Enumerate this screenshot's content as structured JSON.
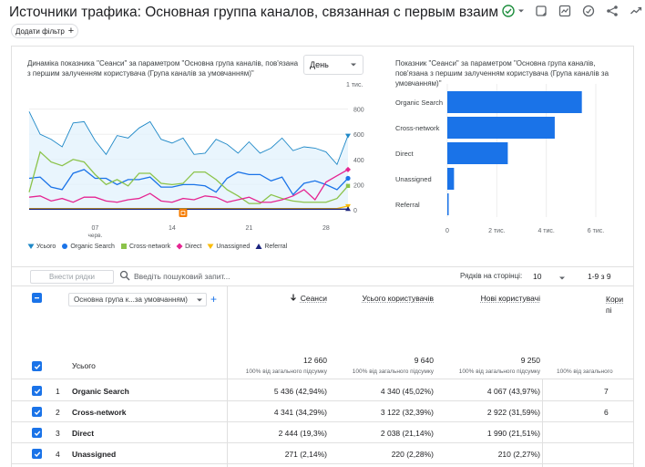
{
  "header": {
    "title": "Источники трафика: Основная группа каналов, связанная с первым взаимодействием поль...",
    "filter_chip": "Додати фільтр"
  },
  "line_chart": {
    "title": "Динаміка показника \"Сеанси\" за параметром \"Основна група каналів, пов'язана з першим залученням користувача (Група каналів за умовчанням)\"",
    "granularity": "День",
    "y_unit": "1 тис.",
    "y_ticks": [
      "800",
      "600",
      "400",
      "200",
      "0"
    ],
    "x_ticks": [
      "07",
      "14",
      "21",
      "28"
    ],
    "x_month": "черв.",
    "legend": [
      "Усього",
      "Organic Search",
      "Cross-network",
      "Direct",
      "Unassigned",
      "Referral"
    ]
  },
  "bar_chart": {
    "title": "Показник \"Сеанси\" за параметром \"Основна група каналів, пов'язана з першим залученням користувача (Група каналів за умовчанням)\"",
    "x_ticks": [
      "0",
      "2 тис.",
      "4 тис.",
      "6 тис."
    ]
  },
  "chart_data": [
    {
      "type": "line",
      "title": "Динаміка показника \"Сеанси\" за параметром \"Основна група каналів, пов'язана з першим залученням користувача (Група каналів за умовчанням)\"",
      "x": [
        1,
        2,
        3,
        4,
        5,
        6,
        7,
        8,
        9,
        10,
        11,
        12,
        13,
        14,
        15,
        16,
        17,
        18,
        19,
        20,
        21,
        22,
        23,
        24,
        25,
        26,
        27,
        28,
        29,
        30
      ],
      "x_ticks": [
        "07",
        "14",
        "21",
        "28"
      ],
      "x_month": "черв.",
      "ylim": [
        0,
        1000
      ],
      "y_unit": "1 тис.",
      "y_ticks": [
        800,
        600,
        400,
        200,
        0
      ],
      "legend_position": "bottom",
      "series": [
        {
          "name": "Усього",
          "color": "#1e88c7",
          "values": [
            780,
            600,
            560,
            500,
            690,
            700,
            550,
            440,
            590,
            570,
            650,
            700,
            560,
            530,
            570,
            440,
            450,
            560,
            520,
            450,
            540,
            450,
            490,
            570,
            470,
            500,
            490,
            460,
            360,
            590
          ]
        },
        {
          "name": "Organic Search",
          "color": "#1a73e8",
          "values": [
            250,
            260,
            180,
            160,
            290,
            320,
            250,
            250,
            200,
            240,
            240,
            260,
            180,
            180,
            200,
            200,
            190,
            140,
            250,
            300,
            280,
            280,
            230,
            260,
            120,
            210,
            230,
            200,
            160,
            250
          ]
        },
        {
          "name": "Cross-network",
          "color": "#8bc34a",
          "values": [
            140,
            460,
            380,
            350,
            400,
            380,
            280,
            200,
            240,
            190,
            290,
            290,
            210,
            200,
            210,
            300,
            300,
            240,
            160,
            110,
            50,
            50,
            120,
            90,
            70,
            60,
            60,
            60,
            90,
            190
          ]
        },
        {
          "name": "Direct",
          "color": "#e52592",
          "values": [
            100,
            110,
            70,
            90,
            60,
            100,
            100,
            70,
            60,
            80,
            90,
            130,
            70,
            60,
            90,
            80,
            110,
            100,
            60,
            80,
            100,
            60,
            60,
            80,
            110,
            160,
            80,
            220,
            270,
            320
          ]
        },
        {
          "name": "Unassigned",
          "color": "#fbbc04",
          "values": [
            10,
            10,
            10,
            10,
            10,
            10,
            10,
            10,
            10,
            10,
            10,
            10,
            10,
            10,
            10,
            10,
            10,
            10,
            10,
            10,
            10,
            10,
            10,
            10,
            10,
            10,
            10,
            10,
            10,
            30
          ]
        },
        {
          "name": "Referral",
          "color": "#1a237e",
          "values": [
            5,
            5,
            5,
            5,
            5,
            5,
            5,
            5,
            5,
            5,
            5,
            5,
            5,
            5,
            5,
            5,
            5,
            5,
            5,
            5,
            5,
            5,
            5,
            5,
            5,
            5,
            5,
            5,
            5,
            5
          ]
        }
      ]
    },
    {
      "type": "bar",
      "title": "Показник \"Сеанси\" за параметром \"Основна група каналів, пов'язана з першим залученням користувача (Група каналів за умовчанням)\"",
      "orientation": "horizontal",
      "categories": [
        "Organic Search",
        "Cross-network",
        "Direct",
        "Unassigned",
        "Referral"
      ],
      "values": [
        5436,
        4341,
        2444,
        271,
        40
      ],
      "xlim": [
        0,
        6000
      ],
      "x_ticks": [
        "0",
        "2 тис.",
        "4 тис.",
        "6 тис."
      ],
      "color": "#1a73e8"
    }
  ],
  "toolbar": {
    "search_rows": "Внести рядки",
    "search_placeholder": "Введіть пошуковий запит...",
    "rows_per_page_label": "Рядків на сторінці:",
    "rows_per_page": "10",
    "pager": "1-9 з 9"
  },
  "table": {
    "dimension": "Основна група к...за умовчанням)",
    "total_label": "Усього",
    "columns": [
      {
        "label": "Сеанси",
        "sorted": true,
        "total": "12 660",
        "sub": "100% від загального підсумку"
      },
      {
        "label": "Усього користувачів",
        "total": "9 640",
        "sub": "100% від загального підсумку"
      },
      {
        "label": "Нові користувачі",
        "total": "9 250",
        "sub": "100% від загального підсумку"
      },
      {
        "label": "Кори",
        "label2": "пі",
        "total": "",
        "sub": "100% від загального"
      }
    ],
    "rows": [
      {
        "num": "1",
        "name": "Organic Search",
        "c1": "5 436 (42,94%)",
        "c2": "4 340 (45,02%)",
        "c3": "4 067 (43,97%)",
        "c4": "7"
      },
      {
        "num": "2",
        "name": "Cross-network",
        "c1": "4 341 (34,29%)",
        "c2": "3 122 (32,39%)",
        "c3": "2 922 (31,59%)",
        "c4": "6"
      },
      {
        "num": "3",
        "name": "Direct",
        "c1": "2 444 (19,3%)",
        "c2": "2 038 (21,14%)",
        "c3": "1 990 (21,51%)",
        "c4": ""
      },
      {
        "num": "4",
        "name": "Unassigned",
        "c1": "271 (2,14%)",
        "c2": "220 (2,28%)",
        "c3": "210 (2,27%)",
        "c4": ""
      }
    ]
  },
  "colors": {
    "accent": "#1a73e8",
    "bar": "#1a73e8",
    "area_fill": "#e3f2fd",
    "check": "#1e8e3e"
  },
  "icons": [
    "check-circle-icon",
    "dropdown-icon",
    "edit-report-icon",
    "insights-icon",
    "compare-icon",
    "share-icon",
    "trend-icon",
    "pencil-icon",
    "search-icon",
    "add-icon"
  ]
}
